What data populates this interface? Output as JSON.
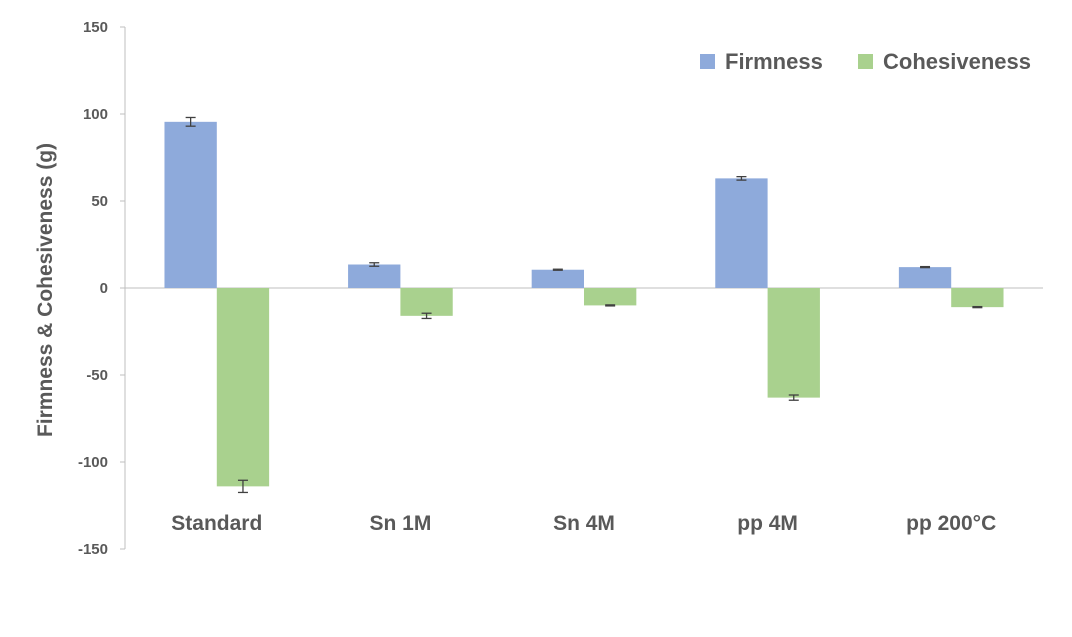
{
  "chart_data": {
    "type": "bar",
    "categories": [
      "Standard",
      "Sn 1M",
      "Sn 4M",
      "pp 4M",
      "pp 200°C"
    ],
    "series": [
      {
        "name": "Firmness",
        "color": "#8eaadb",
        "values": [
          95.5,
          13.5,
          10.5,
          63,
          12
        ],
        "errors": [
          2.5,
          1,
          0.3,
          1,
          0.3
        ]
      },
      {
        "name": "Cohesiveness",
        "color": "#a9d18e",
        "values": [
          -114,
          -16,
          -10,
          -63,
          -11
        ],
        "errors": [
          3.5,
          1.5,
          0.3,
          1.5,
          0.3
        ]
      }
    ],
    "ylabel": "Firmness & Cohesiveness (g)",
    "ylim": [
      -150,
      150
    ],
    "yticks": [
      150,
      100,
      50,
      0,
      -50,
      -100,
      -150
    ],
    "legend_position": "top-right",
    "grid": false
  }
}
